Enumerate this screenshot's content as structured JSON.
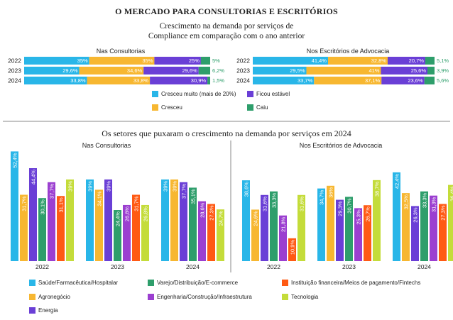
{
  "title": "O MERCADO PARA CONSULTORIAS E ESCRITÓRIOS",
  "subtitle_line1": "Crescimento na demanda por serviços de",
  "subtitle_line2": "Compliance em comparação com o ano anterior",
  "section2_title": "Os setores que puxaram o crescimento na demanda por serviços em 2024",
  "colors": {
    "cresceu_muito": "#29b6e8",
    "cresceu": "#f7b731",
    "ficou_estavel": "#6a3fd6",
    "caiu": "#2e9e6b",
    "saude": "#29b6e8",
    "agronegocio": "#f7b731",
    "energia": "#6a3fd6",
    "varejo": "#2e9e6b",
    "engenharia": "#9b3fd0",
    "instituicao": "#ff5a14",
    "tecnologia": "#c4dc3a"
  },
  "top_legend": [
    {
      "label": "Cresceu muito (mais de 20%)",
      "color_key": "cresceu_muito"
    },
    {
      "label": "Ficou estável",
      "color_key": "ficou_estavel"
    },
    {
      "label": "Cresceu",
      "color_key": "cresceu"
    },
    {
      "label": "Caiu",
      "color_key": "caiu"
    }
  ],
  "bottom_legend": [
    {
      "label": "Saúde/Farmacêutica/Hospitalar",
      "color_key": "saude"
    },
    {
      "label": "Varejo/Distribuição/E-commerce",
      "color_key": "varejo"
    },
    {
      "label": "Instituição financeira/Meios de pagamento/Fintechs",
      "color_key": "instituicao"
    },
    {
      "label": "Agronegócio",
      "color_key": "agronegocio"
    },
    {
      "label": "Engenharia/Construção/Infraestrutura",
      "color_key": "engenharia"
    },
    {
      "label": "Tecnologia",
      "color_key": "tecnologia"
    },
    {
      "label": "Energia",
      "color_key": "energia"
    }
  ],
  "chart_data": [
    {
      "type": "bar",
      "orientation": "horizontal-stacked",
      "title": "Nas Consultorias",
      "categories": [
        "2022",
        "2023",
        "2024"
      ],
      "series": [
        {
          "name": "Cresceu muito (mais de 20%)",
          "values": [
            35,
            29.6,
            33.8
          ],
          "labels": [
            "35%",
            "29,6%",
            "33,8%"
          ]
        },
        {
          "name": "Cresceu",
          "values": [
            35,
            34.6,
            33.8
          ],
          "labels": [
            "35%",
            "34,6%",
            "33,8%"
          ]
        },
        {
          "name": "Ficou estável",
          "values": [
            25,
            29.6,
            30.9
          ],
          "labels": [
            "25%",
            "29,6%",
            "30,9%"
          ]
        },
        {
          "name": "Caiu",
          "values": [
            5,
            6.2,
            1.5
          ],
          "labels": [
            "5%",
            "6,2%",
            "1,5%"
          ]
        }
      ]
    },
    {
      "type": "bar",
      "orientation": "horizontal-stacked",
      "title": "Nos Escritórios de Advocacia",
      "categories": [
        "2022",
        "2023",
        "2024"
      ],
      "series": [
        {
          "name": "Cresceu muito (mais de 20%)",
          "values": [
            41.4,
            29.5,
            33.7
          ],
          "labels": [
            "41,4%",
            "29,5%",
            "33,7%"
          ]
        },
        {
          "name": "Cresceu",
          "values": [
            32.8,
            41,
            37.1
          ],
          "labels": [
            "32,8%",
            "41%",
            "37,1%"
          ]
        },
        {
          "name": "Ficou estável",
          "values": [
            20.7,
            25.6,
            23.6
          ],
          "labels": [
            "20,7%",
            "25,6%",
            "23,6%"
          ]
        },
        {
          "name": "Caiu",
          "values": [
            5.1,
            3.9,
            5.6
          ],
          "labels": [
            "5,1%",
            "3,9%",
            "5,6%"
          ]
        }
      ]
    },
    {
      "type": "bar",
      "title": "Nas Consultorias",
      "categories": [
        "2022",
        "2023",
        "2024"
      ],
      "ylim": [
        0,
        55
      ],
      "series": [
        {
          "name": "Saúde/Farmacêutica/Hospitalar",
          "color_key": "saude",
          "values": [
            52.4,
            39,
            39
          ],
          "labels": [
            "52,4%",
            "39%",
            "39%"
          ]
        },
        {
          "name": "Agronegócio",
          "color_key": "agronegocio",
          "values": [
            31.7,
            34.1,
            39
          ],
          "labels": [
            "31,7%",
            "34,1%",
            "39%"
          ]
        },
        {
          "name": "Energia",
          "color_key": "energia",
          "values": [
            44.4,
            39,
            37.7
          ],
          "labels": [
            "44,4%",
            "39%",
            "37,7%"
          ]
        },
        {
          "name": "Varejo/Distribuição/E-commerce",
          "color_key": "varejo",
          "values": [
            30.1,
            24.4,
            35.1
          ],
          "labels": [
            "30,1%",
            "24,4%",
            "35,1%"
          ]
        },
        {
          "name": "Engenharia/Construção/Infraestrutura",
          "color_key": "engenharia",
          "values": [
            37.7,
            26.8,
            28.6
          ],
          "labels": [
            "37,7%",
            "26,8%",
            "28,6%"
          ]
        },
        {
          "name": "Instituição financeira/Meios de pagamento/Fintechs",
          "color_key": "instituicao",
          "values": [
            31.1,
            31.7,
            27.3
          ],
          "labels": [
            "31,1%",
            "31,7%",
            "27,3%"
          ]
        },
        {
          "name": "Tecnologia",
          "color_key": "tecnologia",
          "values": [
            39,
            26.8,
            24.7
          ],
          "labels": [
            "39%",
            "26,8%",
            "24,7%"
          ]
        }
      ]
    },
    {
      "type": "bar",
      "title": "Nos Escritórios de Advocacia",
      "categories": [
        "2022",
        "2023",
        "2024"
      ],
      "ylim": [
        0,
        55
      ],
      "series": [
        {
          "name": "Saúde/Farmacêutica/Hospitalar",
          "color_key": "saude",
          "values": [
            38.6,
            34.7,
            42.4
          ],
          "labels": [
            "38,6%",
            "34,7%",
            "42,4%"
          ]
        },
        {
          "name": "Agronegócio",
          "color_key": "agronegocio",
          "values": [
            24.6,
            36,
            32.5
          ],
          "labels": [
            "24,6%",
            "36%",
            "32,5%"
          ]
        },
        {
          "name": "Energia",
          "color_key": "energia",
          "values": [
            31.6,
            29.3,
            26.3
          ],
          "labels": [
            "31,6%",
            "29,3%",
            "26,3%"
          ]
        },
        {
          "name": "Varejo/Distribuição/E-commerce",
          "color_key": "varejo",
          "values": [
            33.3,
            30.7,
            33.3
          ],
          "labels": [
            "33,3%",
            "30,7%",
            "33,3%"
          ]
        },
        {
          "name": "Engenharia/Construção/Infraestrutura",
          "color_key": "engenharia",
          "values": [
            21.8,
            25.3,
            31.3
          ],
          "labels": [
            "21,8%",
            "25,3%",
            "31,3%"
          ]
        },
        {
          "name": "Instituição financeira/Meios de pagamento/Fintechs",
          "color_key": "instituicao",
          "values": [
            10.9,
            26.7,
            27.3
          ],
          "labels": [
            "10,9%",
            "26,7%",
            "27,3%"
          ]
        },
        {
          "name": "Tecnologia",
          "color_key": "tecnologia",
          "values": [
            31.6,
            38.7,
            36.4
          ],
          "labels": [
            "31,6%",
            "38,7%",
            "36,4%"
          ]
        }
      ]
    }
  ]
}
